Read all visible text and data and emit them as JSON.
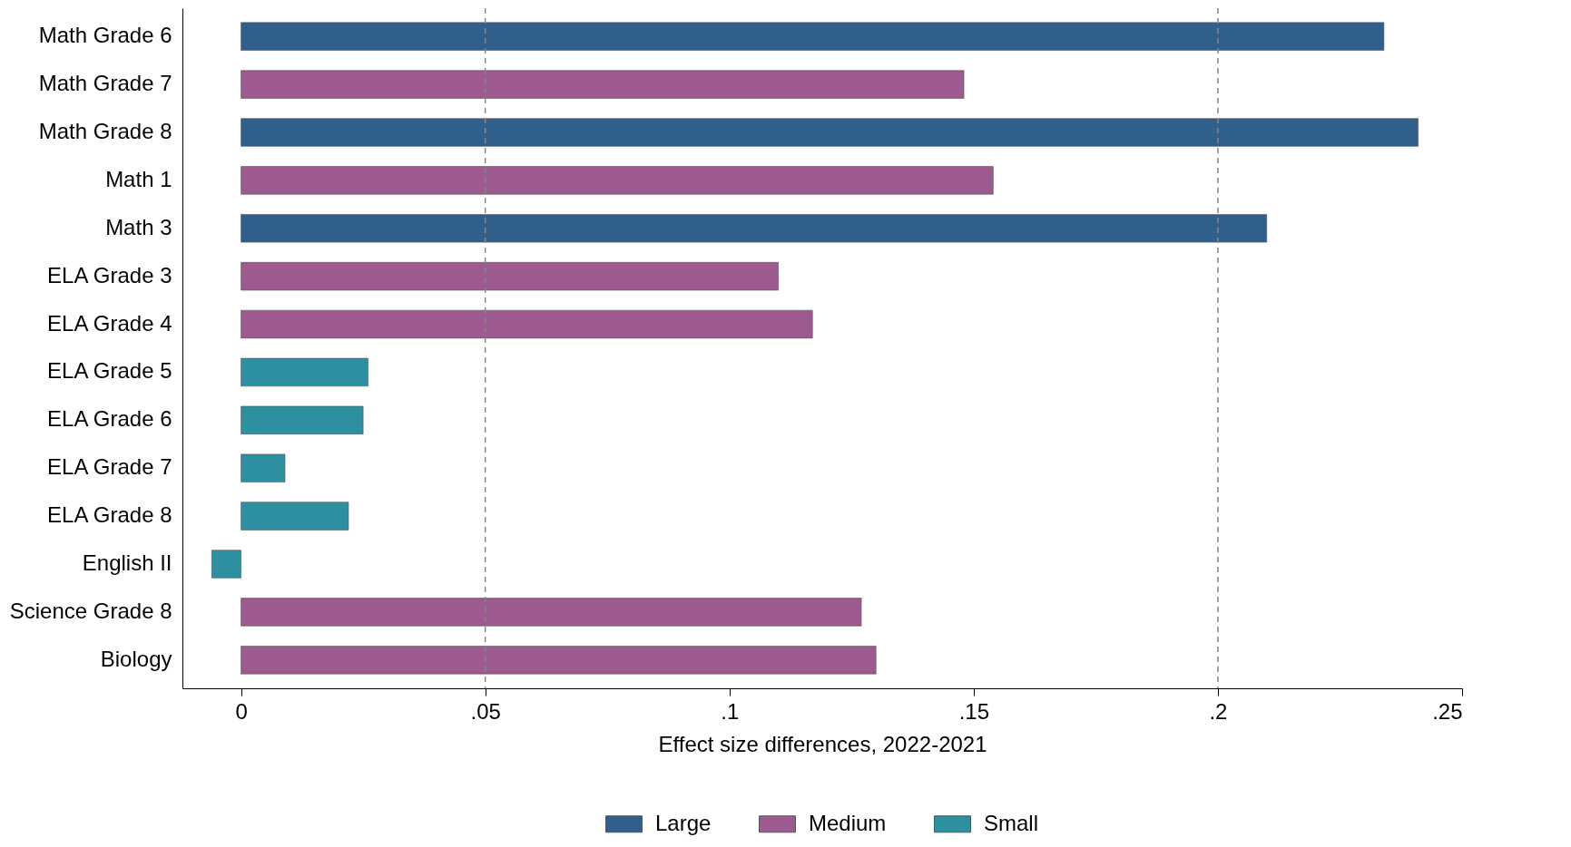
{
  "chart_data": {
    "type": "bar",
    "orientation": "horizontal",
    "xlabel": "Effect size differences, 2022-2021",
    "categories": [
      "Math Grade 6",
      "Math Grade 7",
      "Math Grade 8",
      "Math 1",
      "Math 3",
      "ELA Grade 3",
      "ELA Grade 4",
      "ELA Grade 5",
      "ELA Grade 6",
      "ELA Grade 7",
      "ELA Grade 8",
      "English II",
      "Science Grade 8",
      "Biology"
    ],
    "series": [
      {
        "name": "Large",
        "color": "#2f5f8a",
        "values": [
          0.234,
          null,
          0.241,
          null,
          0.21,
          null,
          null,
          null,
          null,
          null,
          null,
          null,
          null,
          null
        ]
      },
      {
        "name": "Medium",
        "color": "#9c5a8f",
        "values": [
          null,
          0.148,
          null,
          0.154,
          null,
          0.11,
          0.117,
          null,
          null,
          null,
          null,
          null,
          0.127,
          0.13
        ]
      },
      {
        "name": "Small",
        "color": "#2e8fa0",
        "values": [
          null,
          null,
          null,
          null,
          null,
          null,
          null,
          0.026,
          0.025,
          0.009,
          0.022,
          -0.006,
          null,
          null
        ]
      }
    ],
    "xlim": [
      -0.012,
      0.25
    ],
    "xticks": [
      0,
      {
        "value": 0.05,
        "label": ".05"
      },
      {
        "value": 0.1,
        "label": ".1"
      },
      {
        "value": 0.15,
        "label": ".15"
      },
      {
        "value": 0.2,
        "label": ".2"
      },
      {
        "value": 0.25,
        "label": ".25"
      }
    ],
    "ref_lines": [
      {
        "axis": "x",
        "value": 0.05,
        "line_style": "dashed",
        "color": "#888888"
      },
      {
        "axis": "x",
        "value": 0.2,
        "line_style": "dashed",
        "color": "#888888"
      }
    ],
    "legend": "bottom"
  }
}
